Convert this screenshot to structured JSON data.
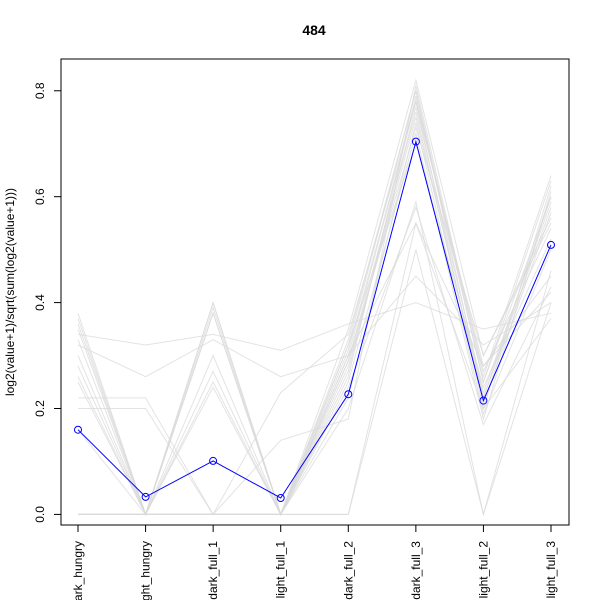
{
  "chart_data": {
    "type": "line",
    "title": "484",
    "xlabel": "",
    "ylabel": "log2(value+1)/sqrt(sum(log2(value+1)))",
    "categories": [
      "dark_hungry",
      "light_hungry",
      "dark_full_1",
      "light_full_1",
      "dark_full_2",
      "dark_full_3",
      "light_full_2",
      "light_full_3"
    ],
    "category_tick_labels": [
      "ark_hungry",
      "ght_hungry",
      "dark_full_1",
      "light_full_1",
      "dark_full_2",
      "dark_full_3",
      "light_full_2",
      "light_full_3"
    ],
    "ylim": [
      -0.02,
      0.86
    ],
    "yticks": [
      0.0,
      0.2,
      0.4,
      0.6,
      0.8
    ],
    "ytick_labels": [
      "0.0",
      "0.2",
      "0.4",
      "0.6",
      "0.8"
    ],
    "grid": false,
    "highlight": {
      "color": "#0000ff",
      "marker": "open-circle",
      "values": [
        0.16,
        0.033,
        0.101,
        0.031,
        0.227,
        0.704,
        0.215,
        0.509
      ]
    },
    "background_series_color": "#d9d9d9",
    "background_series": [
      [
        0.38,
        0.0,
        0.4,
        0.0,
        0.3,
        0.78,
        0.2,
        0.62
      ],
      [
        0.37,
        0.0,
        0.39,
        0.0,
        0.33,
        0.8,
        0.25,
        0.6
      ],
      [
        0.36,
        0.0,
        0.38,
        0.0,
        0.28,
        0.75,
        0.22,
        0.58
      ],
      [
        0.35,
        0.0,
        0.0,
        0.0,
        0.35,
        0.82,
        0.3,
        0.55
      ],
      [
        0.34,
        0.32,
        0.34,
        0.31,
        0.36,
        0.4,
        0.35,
        0.38
      ],
      [
        0.33,
        0.0,
        0.0,
        0.0,
        0.25,
        0.72,
        0.18,
        0.61
      ],
      [
        0.32,
        0.26,
        0.33,
        0.26,
        0.3,
        0.45,
        0.32,
        0.4
      ],
      [
        0.3,
        0.0,
        0.3,
        0.0,
        0.32,
        0.7,
        0.24,
        0.52
      ],
      [
        0.28,
        0.0,
        0.27,
        0.0,
        0.29,
        0.76,
        0.21,
        0.57
      ],
      [
        0.26,
        0.0,
        0.0,
        0.23,
        0.34,
        0.78,
        0.28,
        0.42
      ],
      [
        0.25,
        0.0,
        0.25,
        0.0,
        0.22,
        0.74,
        0.19,
        0.5
      ],
      [
        0.22,
        0.22,
        0.0,
        0.0,
        0.2,
        0.59,
        0.0,
        0.4
      ],
      [
        0.2,
        0.2,
        0.0,
        0.0,
        0.3,
        0.55,
        0.28,
        0.45
      ],
      [
        0.16,
        0.0,
        0.24,
        0.0,
        0.26,
        0.79,
        0.25,
        0.63
      ],
      [
        0.0,
        0.0,
        0.38,
        0.0,
        0.27,
        0.77,
        0.23,
        0.59
      ],
      [
        0.0,
        0.0,
        0.0,
        0.0,
        0.0,
        0.55,
        0.2,
        0.37
      ],
      [
        0.0,
        0.0,
        0.0,
        0.0,
        0.0,
        0.5,
        0.0,
        0.46
      ],
      [
        0.0,
        0.0,
        0.0,
        0.14,
        0.18,
        0.81,
        0.26,
        0.64
      ],
      [
        0.0,
        0.0,
        0.0,
        0.0,
        0.24,
        0.58,
        0.17,
        0.43
      ],
      [
        0.0,
        0.0,
        0.0,
        0.0,
        0.29,
        0.73,
        0.3,
        0.56
      ],
      [
        0.0,
        0.0,
        0.0,
        0.0,
        0.32,
        0.8,
        0.22,
        0.6
      ],
      [
        0.0,
        0.0,
        0.4,
        0.0,
        0.31,
        0.78,
        0.27,
        0.54
      ]
    ]
  }
}
